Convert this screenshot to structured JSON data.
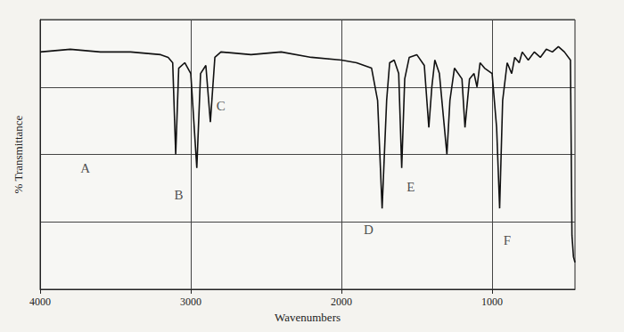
{
  "chart_data": {
    "type": "line",
    "x_label": "Wavenumbers",
    "y_label": "% Transmittance",
    "color": "#111111",
    "x": [
      4000,
      3800,
      3600,
      3400,
      3200,
      3150,
      3120,
      3100,
      3080,
      3040,
      3000,
      2960,
      2935,
      2900,
      2870,
      2840,
      2800,
      2600,
      2400,
      2200,
      2000,
      1900,
      1800,
      1760,
      1730,
      1700,
      1680,
      1650,
      1620,
      1600,
      1580,
      1550,
      1500,
      1450,
      1420,
      1400,
      1380,
      1350,
      1300,
      1280,
      1250,
      1200,
      1180,
      1150,
      1120,
      1100,
      1080,
      1050,
      1000,
      970,
      950,
      930,
      900,
      870,
      850,
      820,
      800,
      760,
      720,
      680,
      640,
      600,
      560,
      520,
      480,
      470,
      460,
      450
    ],
    "values": [
      88,
      89,
      88,
      88,
      87,
      86,
      84,
      50,
      82,
      84,
      80,
      45,
      80,
      83,
      62,
      86,
      88,
      87,
      88,
      86,
      85,
      84,
      82,
      70,
      30,
      70,
      84,
      85,
      80,
      45,
      78,
      86,
      87,
      83,
      60,
      75,
      85,
      80,
      50,
      70,
      82,
      78,
      60,
      78,
      80,
      75,
      84,
      82,
      80,
      60,
      30,
      70,
      84,
      80,
      86,
      84,
      88,
      85,
      88,
      86,
      89,
      88,
      90,
      88,
      85,
      20,
      12,
      10
    ],
    "xlim": [
      4000,
      450
    ],
    "xticks": [
      4000,
      3000,
      2000,
      1000
    ],
    "ylim": [
      0,
      100
    ],
    "yticks": [
      0,
      25,
      50,
      75,
      100
    ],
    "grid": true,
    "tick_labels": "x",
    "annotations": [
      {
        "text": "A",
        "x": 3700,
        "y": 45
      },
      {
        "text": "B",
        "x": 3080,
        "y": 35
      },
      {
        "text": "C",
        "x": 2800,
        "y": 68
      },
      {
        "text": "D",
        "x": 1820,
        "y": 22
      },
      {
        "text": "E",
        "x": 1540,
        "y": 38
      },
      {
        "text": "F",
        "x": 900,
        "y": 18
      }
    ]
  }
}
